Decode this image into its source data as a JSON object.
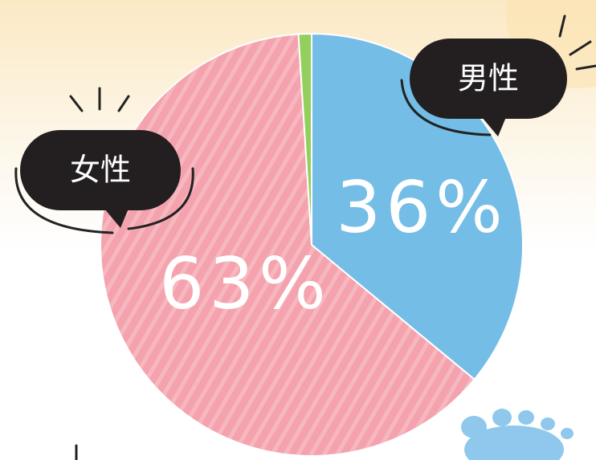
{
  "chart_data": {
    "type": "pie",
    "categories": [
      "男性",
      "女性",
      null
    ],
    "values": [
      36,
      63,
      1
    ],
    "value_labels": [
      "36%",
      "63%",
      null
    ],
    "colors": [
      "#74bde6",
      "#f4a3ae",
      "#93cf5c"
    ],
    "hatched": [
      false,
      true,
      false
    ]
  }
}
